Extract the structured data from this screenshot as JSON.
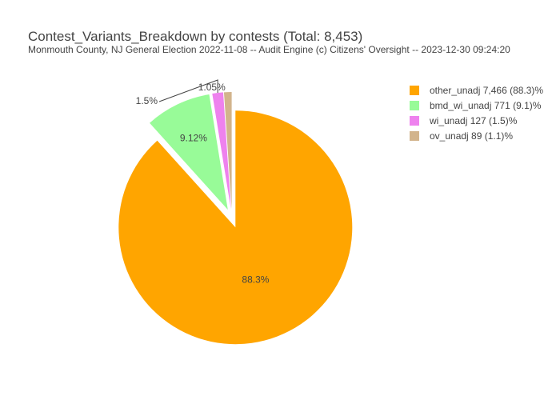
{
  "chart_data": {
    "type": "pie",
    "title": "Contest_Variants_Breakdown by contests (Total: 8,453)",
    "subtitle": "Monmouth County, NJ General Election 2022-11-08 -- Audit Engine (c) Citizens' Oversight -- 2023-12-30 09:24:20",
    "slices": [
      {
        "name": "other_unadj",
        "value": 7466,
        "legend": "other_unadj 7,466 (88.3)%",
        "label": "88.3%",
        "color": "#FFA500",
        "pulled": true
      },
      {
        "name": "bmd_wi_unadj",
        "value": 771,
        "legend": "bmd_wi_unadj 771 (9.1)%",
        "label": "9.12%",
        "color": "#98FB98",
        "pulled": true
      },
      {
        "name": "wi_unadj",
        "value": 127,
        "legend": "wi_unadj 127 (1.5)%",
        "label": "1.5%",
        "color": "#EE82EE",
        "pulled": true
      },
      {
        "name": "ov_unadj",
        "value": 89,
        "legend": "ov_unadj 89 (1.1)%",
        "label": "1.05%",
        "color": "#D2B48C",
        "pulled": true
      }
    ],
    "legend_position": "top-right",
    "direction": "clockwise",
    "start": "top"
  }
}
